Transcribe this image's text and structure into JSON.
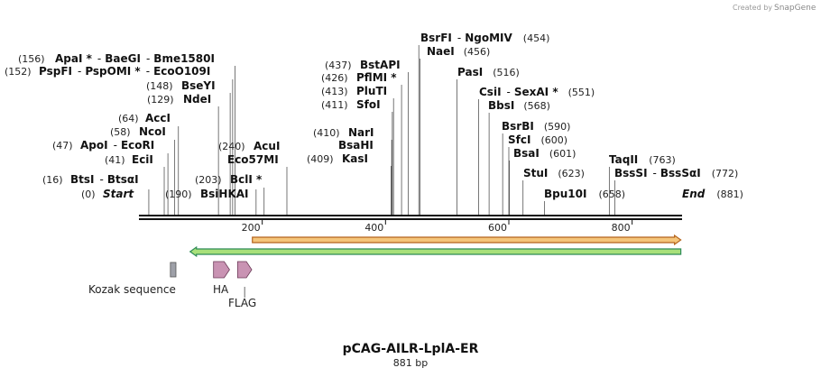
{
  "credit": {
    "prefix": "Created by",
    "brand": "SnapGene"
  },
  "map": {
    "name": "pCAG-AILR-LplA-ER",
    "length_label": "881 bp",
    "length": 881,
    "ticks": [
      "200",
      "400",
      "600",
      "800"
    ],
    "tick_values": [
      200,
      400,
      600,
      800
    ]
  },
  "sites": [
    {
      "pos": "(16)",
      "name": "BtsI",
      "sep": "-",
      "name2": "BtsαI"
    },
    {
      "pos": "(0)",
      "name": "Start"
    },
    {
      "pos": "(41)",
      "name": "EciI"
    },
    {
      "pos": "(47)",
      "name": "ApoI",
      "sep": "-",
      "name2": "EcoRI"
    },
    {
      "pos": "(58)",
      "name": "NcoI"
    },
    {
      "pos": "(64)",
      "name": "AccI"
    },
    {
      "pos": "(129)",
      "name": "NdeI"
    },
    {
      "pos": "(148)",
      "name": "BseYI"
    },
    {
      "pos": "(152)",
      "name": "PspFI",
      "sep": "-",
      "name2": "PspOMI *",
      "sep2": "-",
      "name3": "EcoO109I"
    },
    {
      "pos": "(156)",
      "name": "ApaI *",
      "sep": "-",
      "name2": "BaeGI",
      "sep2": "-",
      "name3": "Bme1580I"
    },
    {
      "pos": "(190)",
      "name": "BsiHKAI"
    },
    {
      "pos": "(203)",
      "name": "BclI *"
    },
    {
      "pos": "(240)",
      "name": "AcuI"
    },
    {
      "name": "Eco57MI"
    },
    {
      "pos": "(409)",
      "name": "KasI"
    },
    {
      "name": "BsaHI"
    },
    {
      "pos": "(410)",
      "name": "NarI"
    },
    {
      "pos": "(411)",
      "name": "SfoI"
    },
    {
      "pos": "(413)",
      "name": "PluTI"
    },
    {
      "pos": "(426)",
      "name": "PflMI *"
    },
    {
      "pos": "(437)",
      "name": "BstAPI"
    },
    {
      "name": "BsrFI",
      "sep": "-",
      "name2": "NgoMIV",
      "pos": "(454)"
    },
    {
      "name": "NaeI",
      "pos": "(456)"
    },
    {
      "name": "PasI",
      "pos": "(516)"
    },
    {
      "name": "CsiI",
      "sep": "-",
      "name2": "SexAI *",
      "pos": "(551)"
    },
    {
      "name": "BbsI",
      "pos": "(568)"
    },
    {
      "name": "BsrBI",
      "pos": "(590)"
    },
    {
      "name": "SfcI",
      "pos": "(600)"
    },
    {
      "name": "BsaI",
      "pos": "(601)"
    },
    {
      "name": "StuI",
      "pos": "(623)"
    },
    {
      "name": "Bpu10I",
      "pos": "(658)"
    },
    {
      "name": "TaqII",
      "pos": "(763)"
    },
    {
      "name": "BssSI",
      "sep": "-",
      "name2": "BssSαI",
      "pos": "(772)"
    },
    {
      "name": "End",
      "pos": "(881)"
    }
  ],
  "cut_positions": [
    16,
    41,
    47,
    58,
    64,
    129,
    148,
    152,
    156,
    190,
    203,
    240,
    409,
    410,
    411,
    413,
    426,
    437,
    454,
    456,
    516,
    551,
    568,
    590,
    600,
    601,
    623,
    658,
    763,
    772
  ],
  "features": {
    "kozak": "Kozak sequence",
    "ha": "HA",
    "flag": "FLAG"
  },
  "feature_ranges": {
    "kozak": [
      51,
      60
    ],
    "ha": [
      121,
      147
    ],
    "flag": [
      160,
      183
    ],
    "orange": [
      184,
      879
    ],
    "green": [
      83,
      879
    ]
  },
  "colors": {
    "backbone": "#111111",
    "orange_fill": "#f5c57a",
    "orange_stroke": "#b5651d",
    "green_fill": "#a8e07a",
    "green_stroke": "#2e8b57",
    "tag_fill": "#c993b3",
    "tag_stroke": "#6b3a57",
    "kozak_fill": "#9ea0a8",
    "line": "#555555"
  }
}
